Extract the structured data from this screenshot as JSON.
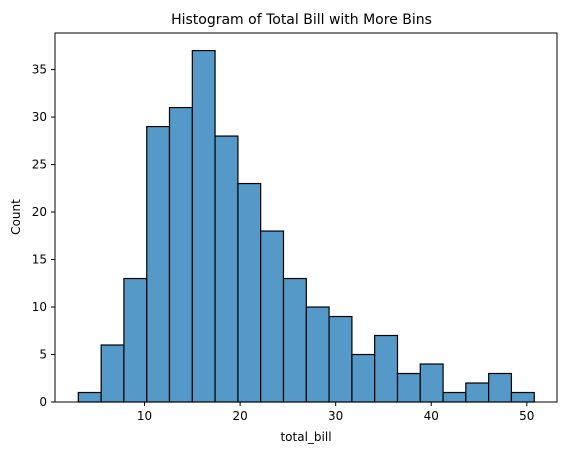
{
  "chart_data": {
    "type": "bar",
    "title": "Histogram of Total Bill with More Bins",
    "xlabel": "total_bill",
    "ylabel": "Count",
    "xlim": [
      0.63,
      53.16
    ],
    "ylim": [
      0,
      38.85
    ],
    "x_ticks": [
      10,
      20,
      30,
      40,
      50
    ],
    "y_ticks": [
      0,
      5,
      10,
      15,
      20,
      25,
      30,
      35
    ],
    "bin_edges": [
      3.07,
      5.46,
      7.84,
      10.23,
      12.61,
      15.0,
      17.38,
      19.77,
      22.15,
      24.54,
      26.93,
      29.31,
      31.7,
      34.08,
      36.47,
      38.85,
      41.24,
      43.62,
      46.01,
      48.39,
      50.78
    ],
    "values": [
      1,
      6,
      13,
      29,
      31,
      37,
      28,
      23,
      18,
      13,
      10,
      9,
      5,
      7,
      3,
      4,
      1,
      2,
      3,
      1
    ],
    "bar_color": "#5499c7",
    "edge_color": "#000000",
    "grid": false,
    "legend": "none"
  }
}
